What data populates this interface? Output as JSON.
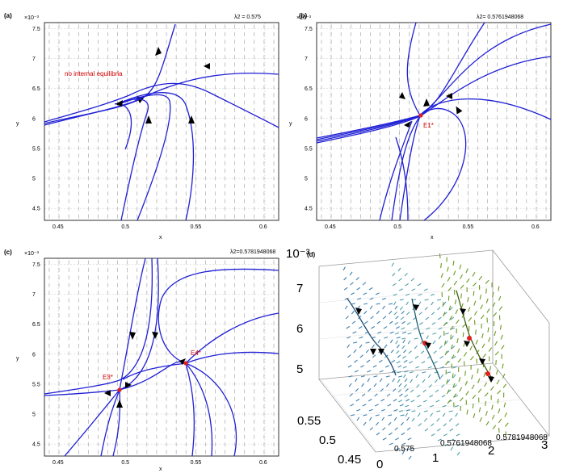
{
  "chart_data": [
    {
      "panel": "(a)",
      "type": "phase-portrait",
      "param_label": "λ2 = 0.575",
      "xlabel": "x",
      "ylabel": "y",
      "y_exponent": "×10⁻³",
      "xlim": [
        0.44,
        0.61
      ],
      "ylim": [
        0.0043,
        0.0076
      ],
      "x_ticks": [
        "0.45",
        "0.5",
        "0.55",
        "0.6"
      ],
      "y_ticks": [
        "4.5",
        "5",
        "5.5",
        "6",
        "6.5",
        "7",
        "7.5"
      ],
      "annotation": "no internal equilibria",
      "equilibria": []
    },
    {
      "panel": "(b)",
      "type": "phase-portrait",
      "param_label": "λ2= 0.5761948068",
      "xlabel": "x",
      "ylabel": "y",
      "y_exponent": "×10⁻³",
      "xlim": [
        0.44,
        0.61
      ],
      "ylim": [
        0.0043,
        0.0076
      ],
      "x_ticks": [
        "0.45",
        "0.5",
        "0.55",
        "0.6"
      ],
      "y_ticks": [
        "4.5",
        "5",
        "5.5",
        "6",
        "6.5",
        "7",
        "7.5"
      ],
      "equilibria": [
        {
          "label": "E1*",
          "x": 0.52,
          "y": 0.0062
        }
      ]
    },
    {
      "panel": "(c)",
      "type": "phase-portrait",
      "param_label": "λ2=0.5781948068",
      "xlabel": "x",
      "ylabel": "y",
      "y_exponent": "×10⁻³",
      "xlim": [
        0.44,
        0.61
      ],
      "ylim": [
        0.0043,
        0.0076
      ],
      "x_ticks": [
        "0.45",
        "0.5",
        "0.55",
        "0.6"
      ],
      "y_ticks": [
        "4.5",
        "5",
        "5.5",
        "6",
        "6.5",
        "7",
        "7.5"
      ],
      "equilibria": [
        {
          "label": "E3*",
          "x": 0.5,
          "y": 0.00545
        },
        {
          "label": "E4*",
          "x": 0.544,
          "y": 0.0059
        }
      ]
    },
    {
      "panel": "(d)",
      "type": "3d-vector-field",
      "z_exponent": "10⁻³",
      "z_ticks": [
        "5",
        "6",
        "7"
      ],
      "x_ticks": [
        "0.45",
        "0.5",
        "0.55"
      ],
      "axis_ticks": [
        "0",
        "1",
        "2",
        "3"
      ],
      "slice_labels": [
        "0.575",
        "0.5761948068",
        "0.5781948068"
      ],
      "slice_colors": [
        "#3f7fb0",
        "#4fa0aa",
        "#6a9a20"
      ]
    }
  ],
  "colors": {
    "trajectory": "#1f1fd6",
    "equilibrium": "#e02020"
  }
}
